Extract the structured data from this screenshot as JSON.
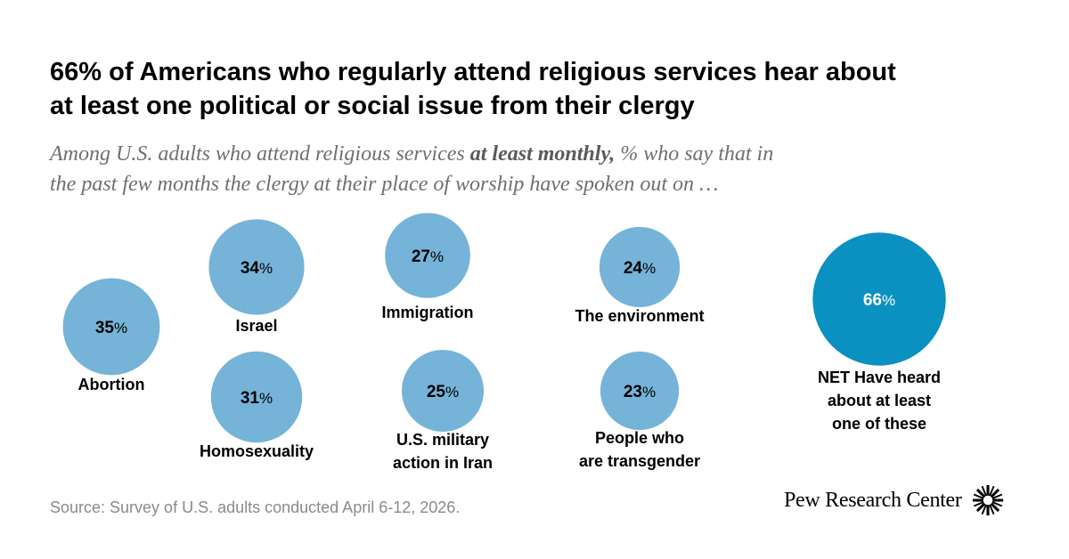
{
  "title_line1": "66% of Americans who regularly attend religious services hear about",
  "title_line2": "at least one political or social issue from their clergy",
  "subtitle": {
    "pre": "Among U.S. adults who attend religious services ",
    "emphasis": "at least monthly,",
    "post": " % who say that in",
    "line2": "the past few months the clergy at their place of worship have spoken out on …"
  },
  "source": "Source: Survey of U.S. adults conducted April 6-12, 2026.",
  "brand": {
    "name": "Pew Research Center",
    "logo_icon": "pew-sunburst-icon"
  },
  "colors": {
    "bubble": "#76b3d8",
    "net_bubble": "#0b90c2",
    "bubble_text": "#000000",
    "net_text": "#ffffff"
  },
  "chart_data": {
    "type": "bubble",
    "title": "66% of Americans who regularly attend religious services hear about at least one political or social issue from their clergy",
    "unit": "%",
    "series": [
      {
        "name": "",
        "items": [
          {
            "label": [
              "Abortion"
            ],
            "value": 35
          },
          {
            "label": [
              "Israel"
            ],
            "value": 34
          },
          {
            "label": [
              "Homosexuality"
            ],
            "value": 31
          },
          {
            "label": [
              "Immigration"
            ],
            "value": 27
          },
          {
            "label": [
              "U.S. military",
              "action in Iran"
            ],
            "value": 25
          },
          {
            "label": [
              "The environment"
            ],
            "value": 24
          },
          {
            "label": [
              "People who",
              "are transgender"
            ],
            "value": 23
          },
          {
            "label": [
              "NET Have heard",
              "about at least",
              "one of these"
            ],
            "value": 66,
            "net": true
          }
        ]
      }
    ]
  }
}
